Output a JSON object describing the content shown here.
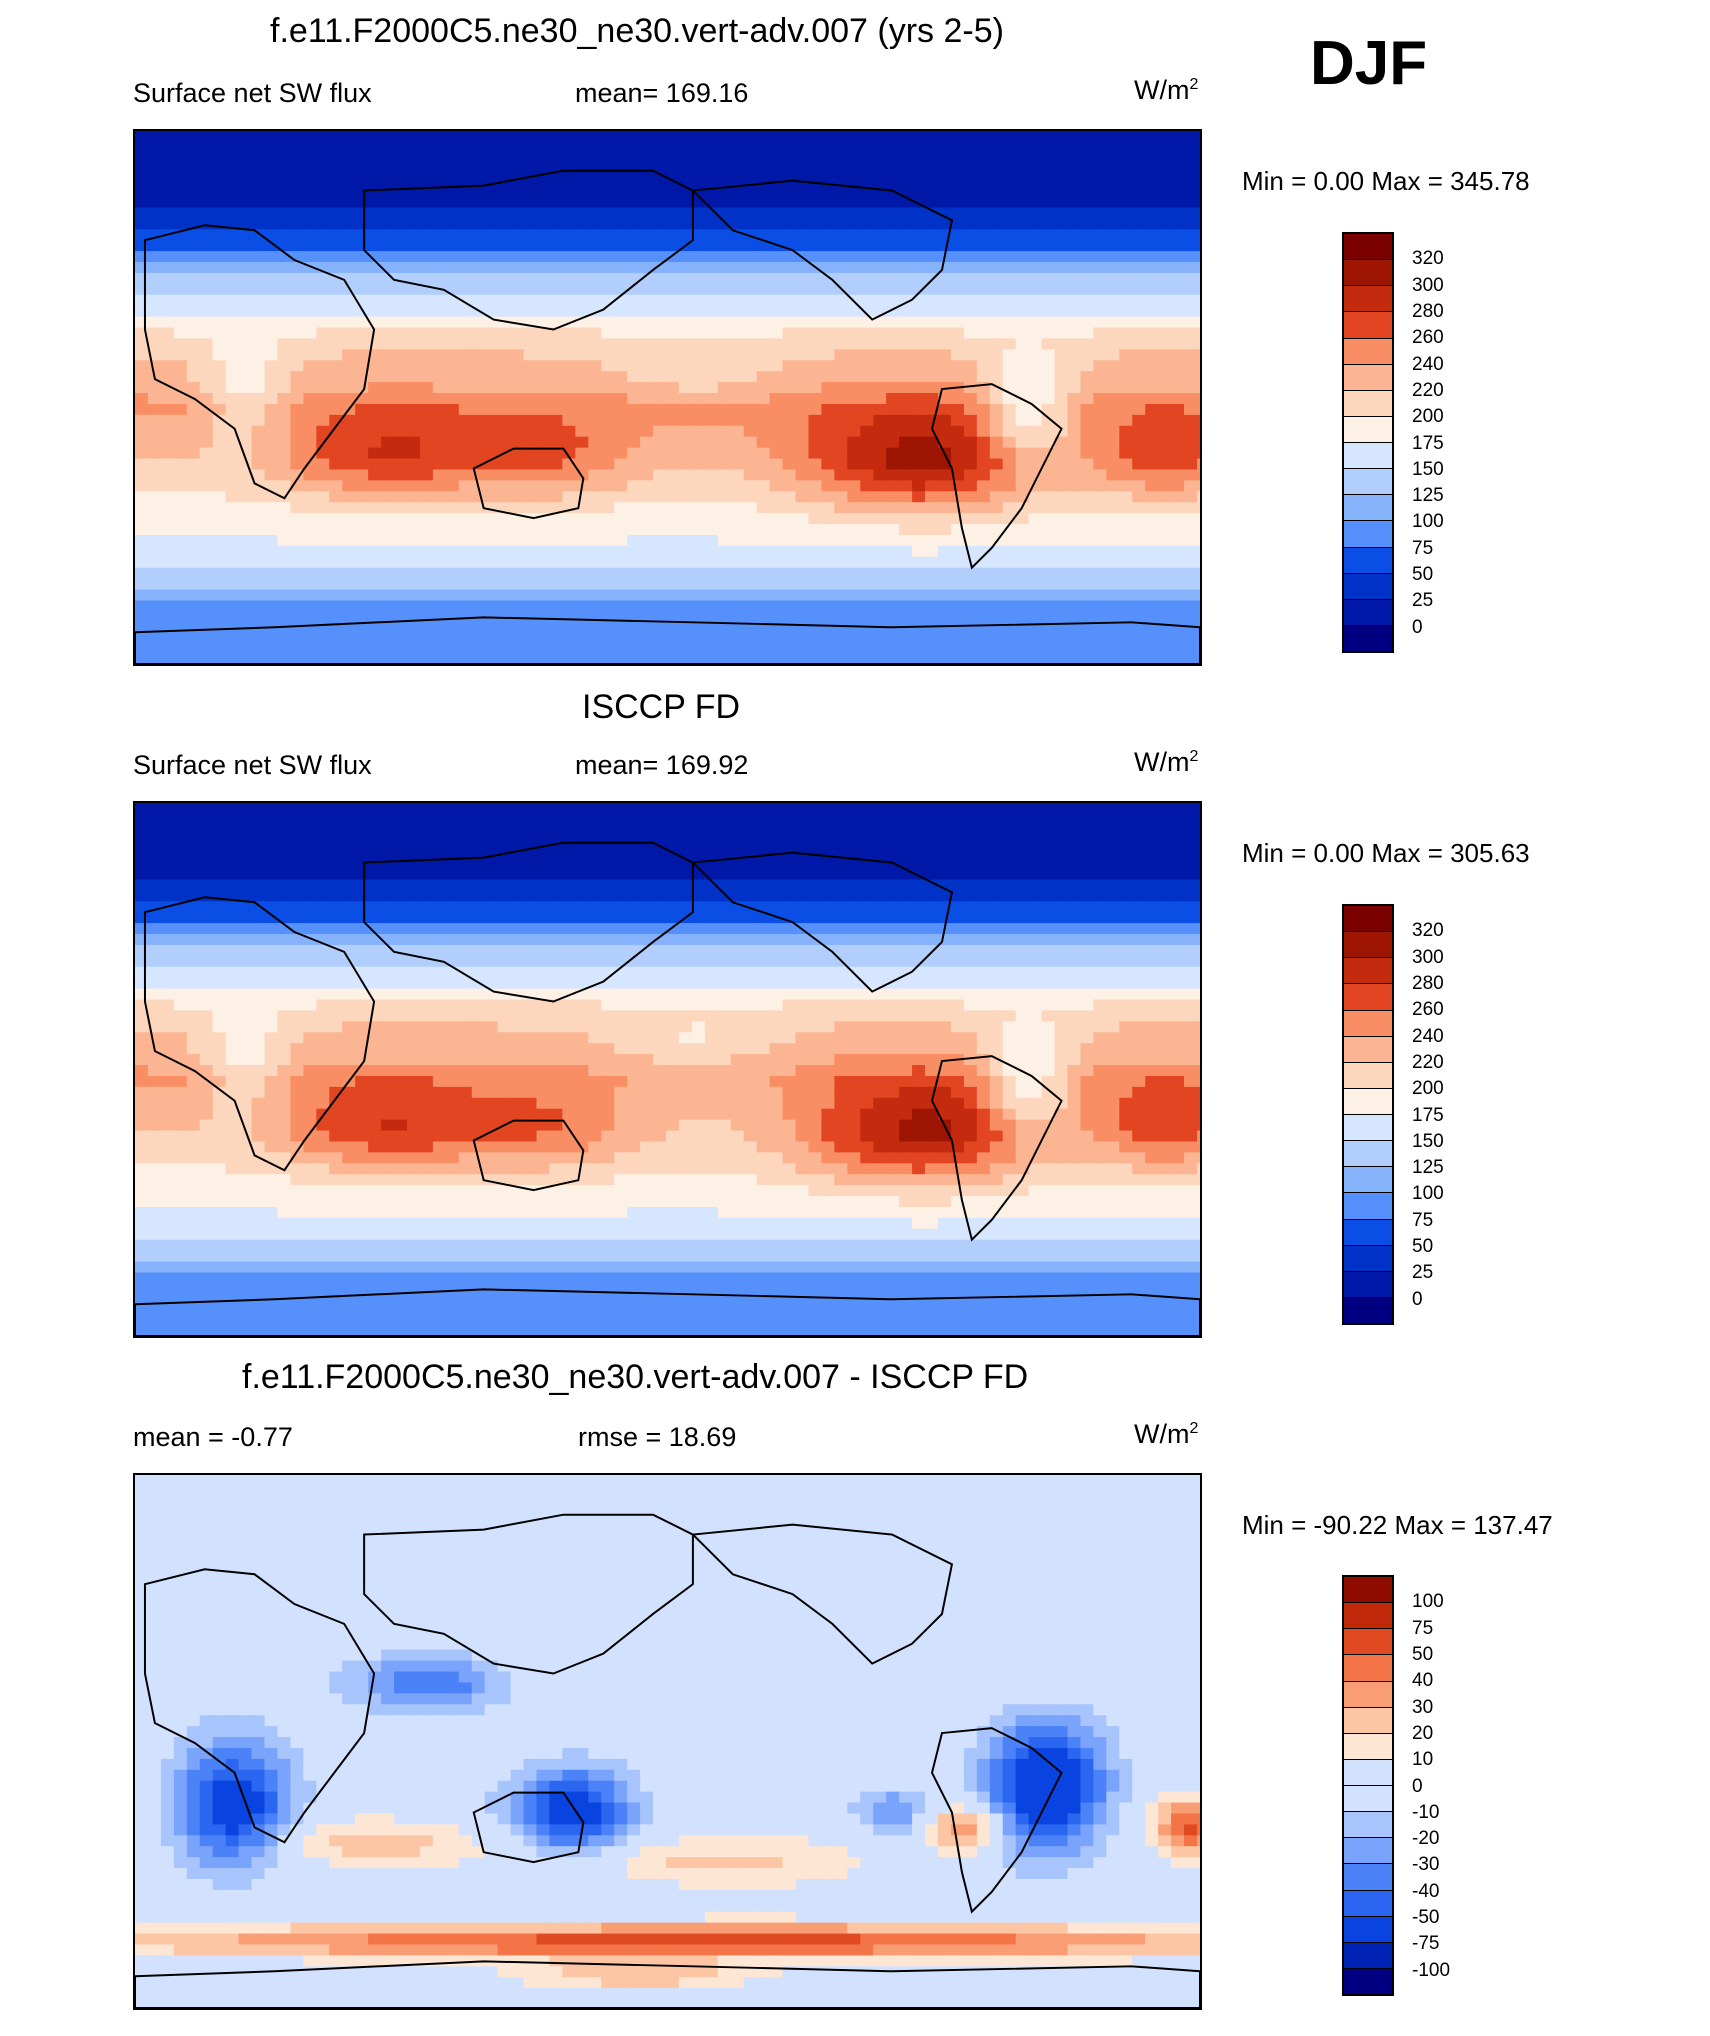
{
  "season": "DJF",
  "units_prefix": "W/m",
  "units_sup": "2",
  "palette_abs": [
    "#000080",
    "#0018a8",
    "#0032c8",
    "#0a4ee6",
    "#2a6cf4",
    "#5690fa",
    "#86b2fc",
    "#b2cefd",
    "#d6e6fe",
    "#fdf0e4",
    "#fdd6be",
    "#fcb592",
    "#f98e64",
    "#f2693f",
    "#e24521",
    "#c42a0d",
    "#9e1504",
    "#7a0100"
  ],
  "palette_diff": [
    "#000080",
    "#0022b4",
    "#0a44e0",
    "#2a66f0",
    "#4c82f8",
    "#7aa4fb",
    "#a8c4fd",
    "#d2e2fe",
    "#fde6d4",
    "#fcc6a4",
    "#f99e74",
    "#f27447",
    "#e04a22",
    "#c02a0b",
    "#8e0c00"
  ],
  "panels": [
    {
      "title": "f.e11.F2000C5.ne30_ne30.vert-adv.007 (yrs 2-5)",
      "left_label": "Surface net SW flux",
      "mid_label": "mean= 169.16",
      "minmax": "Min =    0.00 Max = 345.78",
      "colorbar_levels": [
        "320",
        "300",
        "280",
        "260",
        "240",
        "220",
        "200",
        "175",
        "150",
        "125",
        "100",
        "75",
        "50",
        "25",
        "0"
      ]
    },
    {
      "title": "ISCCP FD",
      "left_label": "Surface net SW flux",
      "mid_label": "mean= 169.92",
      "minmax": "Min =    0.00 Max = 305.63",
      "colorbar_levels": [
        "320",
        "300",
        "280",
        "260",
        "240",
        "220",
        "200",
        "175",
        "150",
        "125",
        "100",
        "75",
        "50",
        "25",
        "0"
      ]
    },
    {
      "title": "f.e11.F2000C5.ne30_ne30.vert-adv.007 - ISCCP FD",
      "left_label": "mean =  -0.77",
      "mid_label": "rmse =  18.69",
      "minmax": "Min = -90.22 Max = 137.47",
      "colorbar_levels": [
        "100",
        "75",
        "50",
        "40",
        "30",
        "20",
        "10",
        "0",
        "-10",
        "-20",
        "-30",
        "-40",
        "-50",
        "-75",
        "-100"
      ]
    }
  ],
  "chart_data": [
    {
      "type": "heatmap",
      "title": "f.e11.F2000C5.ne30_ne30.vert-adv.007 (yrs 2-5)",
      "variable": "Surface net SW flux",
      "units": "W/m2",
      "mean": 169.16,
      "min": 0.0,
      "max": 345.78,
      "contour_levels": [
        0,
        25,
        50,
        75,
        100,
        125,
        150,
        175,
        200,
        220,
        240,
        260,
        280,
        300,
        320
      ]
    },
    {
      "type": "heatmap",
      "title": "ISCCP FD",
      "variable": "Surface net SW flux",
      "units": "W/m2",
      "mean": 169.92,
      "min": 0.0,
      "max": 305.63,
      "contour_levels": [
        0,
        25,
        50,
        75,
        100,
        125,
        150,
        175,
        200,
        220,
        240,
        260,
        280,
        300,
        320
      ]
    },
    {
      "type": "heatmap",
      "title": "f.e11.F2000C5.ne30_ne30.vert-adv.007 - ISCCP FD",
      "units": "W/m2",
      "mean": -0.77,
      "rmse": 18.69,
      "min": -90.22,
      "max": 137.47,
      "contour_levels": [
        -100,
        -75,
        -50,
        -40,
        -30,
        -20,
        -10,
        0,
        10,
        20,
        30,
        40,
        50,
        75,
        100
      ]
    }
  ]
}
